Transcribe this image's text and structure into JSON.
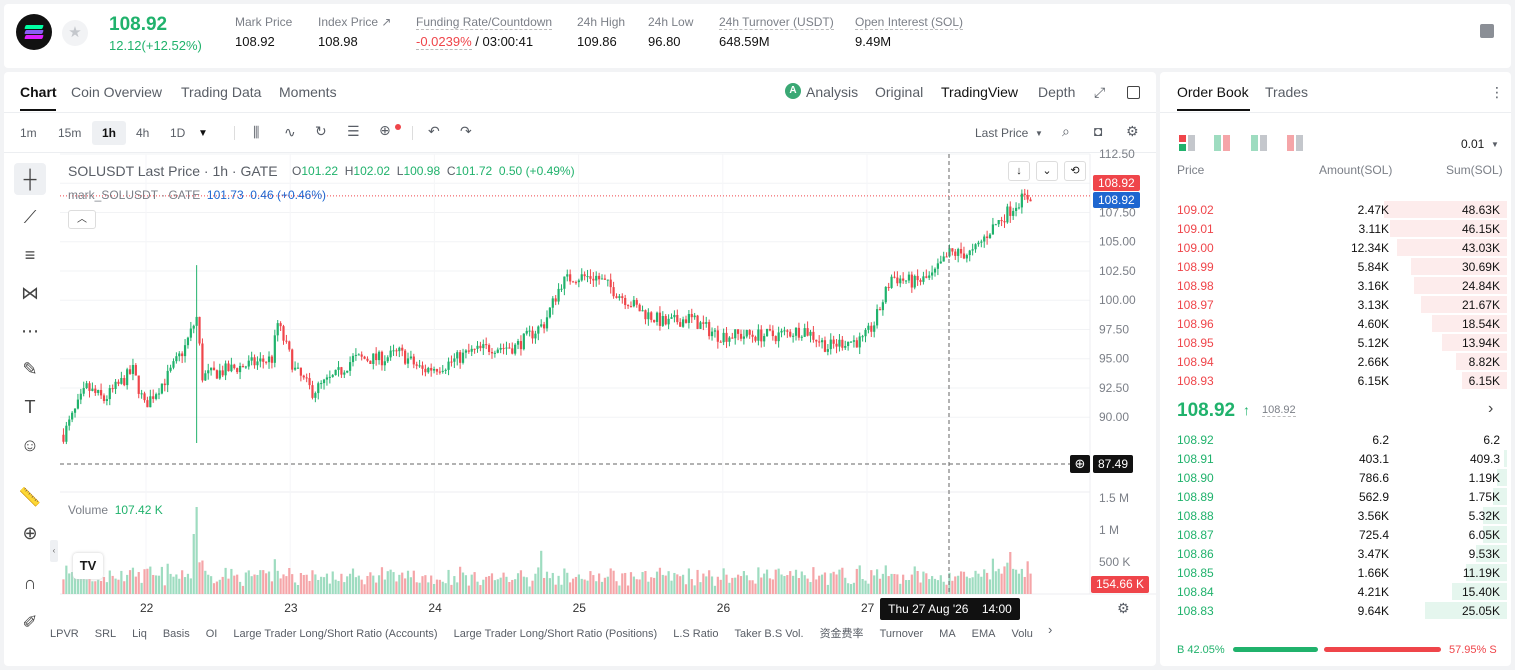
{
  "header": {
    "last_price": "108.92",
    "change": "12.12(+12.52%)",
    "stats": [
      {
        "label": "Mark Price",
        "value": "108.92"
      },
      {
        "label": "Index Price ↗",
        "value": "108.98"
      },
      {
        "label": "Funding Rate/Countdown",
        "value_red": "-0.0239%",
        "value": "/ 03:00:41"
      },
      {
        "label": "24h High",
        "value": "109.86"
      },
      {
        "label": "24h Low",
        "value": "96.80"
      },
      {
        "label": "24h Turnover (USDT)",
        "value": "648.59M"
      },
      {
        "label": "Open Interest (SOL)",
        "value": "9.49M"
      }
    ]
  },
  "chart_tabs": [
    "Chart",
    "Coin Overview",
    "Trading Data",
    "Moments"
  ],
  "view_tabs": {
    "analysis": "Analysis",
    "original": "Original",
    "tradingview": "TradingView",
    "depth": "Depth"
  },
  "intervals": [
    "1m",
    "15m",
    "1h",
    "4h",
    "1D"
  ],
  "last_price_select": "Last Price",
  "legend": {
    "symbol": "SOLUSDT Last Price · 1h · GATE",
    "o_label": "O",
    "o": "101.22",
    "h_label": "H",
    "h": "102.02",
    "l_label": "L",
    "l": "100.98",
    "c_label": "C",
    "c": "101.72",
    "chg": "0.50 (+0.49%)",
    "mark": "mark_SOLUSDT · GATE",
    "mark_val": "101.73",
    "mark_chg": "0.46 (+0.46%)",
    "volume_label": "Volume",
    "volume_val": "107.42 K"
  },
  "price_tags": {
    "last": "108.92",
    "mark": "108.92",
    "cross": "87.49",
    "volume": "154.66 K"
  },
  "crosshair_date": "Thu 27 Aug '26    14:00",
  "chart_data": {
    "type": "candlestick",
    "y_ticks": [
      "112.50",
      "110.00",
      "107.50",
      "105.00",
      "102.50",
      "100.00",
      "97.50",
      "95.00",
      "92.50",
      "90.00"
    ],
    "volume_ticks": [
      "1.5 M",
      "1 M",
      "500 K"
    ],
    "x_ticks": [
      "22",
      "23",
      "24",
      "25",
      "26",
      "27"
    ],
    "ylim": [
      86,
      112.5
    ],
    "volume_max": 1600000,
    "anchors": [
      [
        0,
        88.5
      ],
      [
        8,
        92.5
      ],
      [
        14,
        91.5
      ],
      [
        24,
        94
      ],
      [
        28,
        91
      ],
      [
        36,
        93.5
      ],
      [
        42,
        96
      ],
      [
        46,
        98.5
      ],
      [
        48,
        93.5
      ],
      [
        56,
        94
      ],
      [
        64,
        94.5
      ],
      [
        72,
        95
      ],
      [
        74,
        98
      ],
      [
        80,
        94
      ],
      [
        86,
        92.2
      ],
      [
        94,
        93.5
      ],
      [
        100,
        95
      ],
      [
        110,
        95
      ],
      [
        116,
        95.5
      ],
      [
        124,
        94
      ],
      [
        132,
        94.5
      ],
      [
        140,
        95.5
      ],
      [
        148,
        96
      ],
      [
        156,
        96
      ],
      [
        166,
        98
      ],
      [
        172,
        101.5
      ],
      [
        176,
        102
      ],
      [
        184,
        102
      ],
      [
        192,
        100.5
      ],
      [
        200,
        99
      ],
      [
        208,
        98
      ],
      [
        216,
        98.5
      ],
      [
        226,
        97
      ],
      [
        236,
        97
      ],
      [
        246,
        97
      ],
      [
        256,
        97.5
      ],
      [
        264,
        96
      ],
      [
        270,
        96.5
      ],
      [
        276,
        96.5
      ],
      [
        280,
        98
      ],
      [
        286,
        102
      ],
      [
        294,
        101.5
      ],
      [
        300,
        102
      ],
      [
        306,
        104
      ],
      [
        314,
        104
      ],
      [
        320,
        106
      ],
      [
        326,
        107.5
      ],
      [
        330,
        108.5
      ],
      [
        334,
        108.9
      ]
    ],
    "wicks_special": [
      {
        "i": 46,
        "high": 103,
        "low": 87.8
      }
    ],
    "candle_count": 335
  },
  "drawing_tools": [
    "crosshair-tool",
    "trend-line-tool",
    "fib-tool",
    "pattern-tool",
    "prediction-tool",
    "brush-tool",
    "text-tool",
    "emoji-tool",
    "ruler-tool",
    "zoom-tool",
    "magnet-tool",
    "pencil-tool"
  ],
  "bottom_indicators": [
    "LPVR",
    "SRL",
    "Liq",
    "Basis",
    "OI",
    "Large Trader Long/Short Ratio (Accounts)",
    "Large Trader Long/Short Ratio (Positions)",
    "L.S Ratio",
    "Taker B.S Vol.",
    "资金费率",
    "Turnover",
    "MA",
    "EMA",
    "Volu"
  ],
  "order_book": {
    "tabs": [
      "Order Book",
      "Trades"
    ],
    "precision": "0.01",
    "headers": {
      "price": "Price",
      "amount": "Amount(SOL)",
      "sum": "Sum(SOL)"
    },
    "asks": [
      {
        "price": "109.02",
        "amount": "2.47K",
        "sum": "48.63K",
        "depth": 0.36
      },
      {
        "price": "109.01",
        "amount": "3.11K",
        "sum": "46.15K",
        "depth": 0.34
      },
      {
        "price": "109.00",
        "amount": "12.34K",
        "sum": "43.03K",
        "depth": 0.32
      },
      {
        "price": "108.99",
        "amount": "5.84K",
        "sum": "30.69K",
        "depth": 0.28
      },
      {
        "price": "108.98",
        "amount": "3.16K",
        "sum": "24.84K",
        "depth": 0.27
      },
      {
        "price": "108.97",
        "amount": "3.13K",
        "sum": "21.67K",
        "depth": 0.25
      },
      {
        "price": "108.96",
        "amount": "4.60K",
        "sum": "18.54K",
        "depth": 0.22
      },
      {
        "price": "108.95",
        "amount": "5.12K",
        "sum": "13.94K",
        "depth": 0.19
      },
      {
        "price": "108.94",
        "amount": "2.66K",
        "sum": "8.82K",
        "depth": 0.15
      },
      {
        "price": "108.93",
        "amount": "6.15K",
        "sum": "6.15K",
        "depth": 0.13
      }
    ],
    "mid_price": "108.92",
    "mid_arrow": "↑",
    "mid_mark": "108.92",
    "bids": [
      {
        "price": "108.92",
        "amount": "6.2",
        "sum": "6.2",
        "depth": 0.0
      },
      {
        "price": "108.91",
        "amount": "403.1",
        "sum": "409.3",
        "depth": 0.01
      },
      {
        "price": "108.90",
        "amount": "786.6",
        "sum": "1.19K",
        "depth": 0.03
      },
      {
        "price": "108.89",
        "amount": "562.9",
        "sum": "1.75K",
        "depth": 0.04
      },
      {
        "price": "108.88",
        "amount": "3.56K",
        "sum": "5.32K",
        "depth": 0.07
      },
      {
        "price": "108.87",
        "amount": "725.4",
        "sum": "6.05K",
        "depth": 0.07
      },
      {
        "price": "108.86",
        "amount": "3.47K",
        "sum": "9.53K",
        "depth": 0.09
      },
      {
        "price": "108.85",
        "amount": "1.66K",
        "sum": "11.19K",
        "depth": 0.12
      },
      {
        "price": "108.84",
        "amount": "4.21K",
        "sum": "15.40K",
        "depth": 0.16
      },
      {
        "price": "108.83",
        "amount": "9.64K",
        "sum": "25.05K",
        "depth": 0.24
      }
    ],
    "ratio_buy": "B 42.05%",
    "ratio_sell": "57.95% S",
    "buy_fraction": 0.4205
  },
  "colors": {
    "up": "#20b26c",
    "down": "#ef454a",
    "up_vol": "#9edcc0",
    "down_vol": "#f5a5a8",
    "mark": "#1e66d0"
  }
}
